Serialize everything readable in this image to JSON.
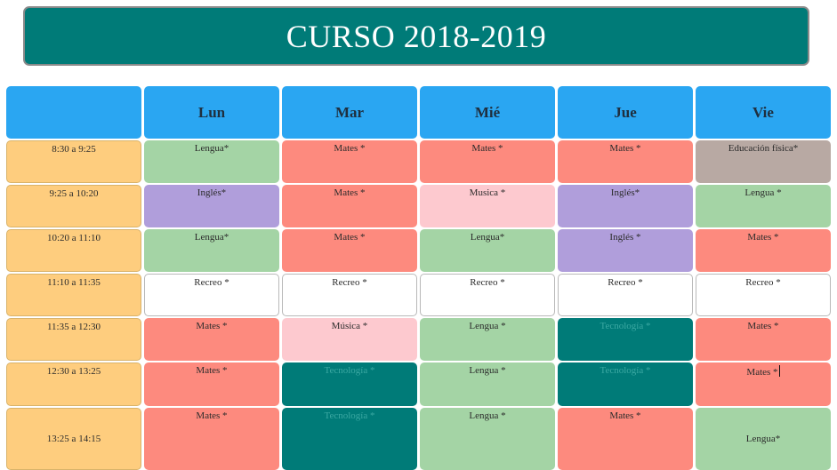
{
  "title": "CURSO 2018-2019",
  "days": [
    "Lun",
    "Mar",
    "Mié",
    "Jue",
    "Vie"
  ],
  "rows": [
    {
      "time": "8:30 a 9:25",
      "cells": [
        "Lengua*",
        "Mates *",
        "Mates *",
        "Mates *",
        "Educación física*"
      ]
    },
    {
      "time": "9:25 a 10:20",
      "cells": [
        "Inglés*",
        "Mates *",
        "Musica *",
        "Inglés*",
        "Lengua *"
      ]
    },
    {
      "time": "10:20 a 11:10",
      "cells": [
        "Lengua*",
        "Mates *",
        "Lengua*",
        "Inglés *",
        "Mates *"
      ]
    },
    {
      "time": "11:10 a 11:35",
      "cells": [
        "Recreo *",
        "Recreo *",
        "Recreo *",
        "Recreo *",
        "Recreo *"
      ]
    },
    {
      "time": "11:35 a 12:30",
      "cells": [
        "Mates *",
        "Música *",
        "Lengua *",
        "Tecnología *",
        "Mates *"
      ]
    },
    {
      "time": "12:30 a 13:25",
      "cells": [
        "Mates *",
        "Tecnología *",
        "Lengua *",
        "Tecnología *",
        "Mates *"
      ]
    },
    {
      "time": "13:25 a 14:15",
      "cells": [
        "Mates *",
        "Tecnología *",
        "Lengua *",
        "Mates *",
        "Lengua*"
      ]
    }
  ],
  "colors": {
    "banner": "#007b78",
    "header": "#2aa6f2",
    "time": "#fecd7e",
    "lengua": "#a4d4a5",
    "mates": "#fd8a7e",
    "ingles": "#b09edb",
    "musica": "#fdc9cf",
    "educacion_fisica": "#b8a9a3",
    "recreo": "#ffffff",
    "tecnologia": "#007b78"
  }
}
